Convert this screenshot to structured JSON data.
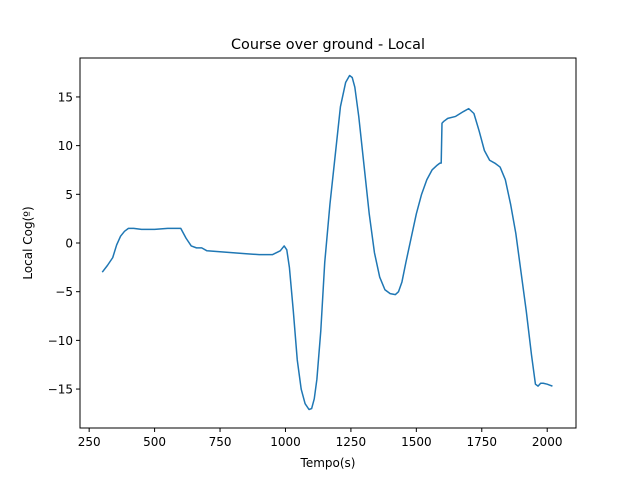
{
  "chart_data": {
    "type": "line",
    "title": "Course over ground - Local",
    "xlabel": "Tempo(s)",
    "ylabel": "Local Cog(º)",
    "xlim": [
      215,
      2110
    ],
    "ylim": [
      -19,
      19
    ],
    "xticks": [
      250,
      500,
      750,
      1000,
      1250,
      1500,
      1750,
      2000
    ],
    "yticks": [
      -15,
      -10,
      -5,
      0,
      5,
      10,
      15
    ],
    "xtick_labels": [
      "250",
      "500",
      "750",
      "1000",
      "1250",
      "1500",
      "1750",
      "2000"
    ],
    "ytick_labels": [
      "−15",
      "−10",
      "−5",
      "0",
      "5",
      "10",
      "15"
    ],
    "grid": false,
    "legend": "none",
    "series": [
      {
        "color": "#1f77b4",
        "x": [
          300,
          320,
          340,
          355,
          370,
          385,
          400,
          420,
          450,
          500,
          550,
          580,
          600,
          620,
          640,
          660,
          680,
          700,
          750,
          800,
          850,
          900,
          950,
          980,
          995,
          1005,
          1015,
          1030,
          1045,
          1060,
          1075,
          1090,
          1100,
          1110,
          1120,
          1135,
          1150,
          1170,
          1190,
          1210,
          1230,
          1245,
          1255,
          1265,
          1280,
          1300,
          1320,
          1340,
          1360,
          1380,
          1400,
          1420,
          1432,
          1445,
          1460,
          1480,
          1500,
          1520,
          1540,
          1560,
          1580,
          1590,
          1595,
          1598,
          1605,
          1620,
          1650,
          1680,
          1700,
          1720,
          1740,
          1760,
          1780,
          1800,
          1820,
          1840,
          1860,
          1880,
          1900,
          1920,
          1940,
          1955,
          1965,
          1975,
          1985,
          2000,
          2010,
          2020
        ],
        "y": [
          -3.0,
          -2.3,
          -1.5,
          -0.2,
          0.7,
          1.2,
          1.5,
          1.5,
          1.4,
          1.4,
          1.5,
          1.5,
          1.5,
          0.5,
          -0.3,
          -0.5,
          -0.5,
          -0.8,
          -0.9,
          -1.0,
          -1.1,
          -1.2,
          -1.2,
          -0.8,
          -0.3,
          -0.7,
          -2.5,
          -7.0,
          -12.0,
          -15.0,
          -16.5,
          -17.1,
          -17.0,
          -16.0,
          -14.0,
          -9.0,
          -2.0,
          4.0,
          9.0,
          14.0,
          16.5,
          17.2,
          17.0,
          16.0,
          13.0,
          8.0,
          3.0,
          -1.0,
          -3.5,
          -4.8,
          -5.2,
          -5.3,
          -5.0,
          -4.0,
          -2.0,
          0.5,
          3.0,
          5.0,
          6.5,
          7.5,
          8.0,
          8.2,
          8.2,
          12.3,
          12.5,
          12.8,
          13.0,
          13.5,
          13.8,
          13.3,
          11.5,
          9.5,
          8.5,
          8.2,
          7.8,
          6.5,
          4.0,
          1.0,
          -3.0,
          -7.0,
          -11.5,
          -14.5,
          -14.7,
          -14.4,
          -14.4,
          -14.5,
          -14.6,
          -14.7
        ]
      }
    ]
  }
}
